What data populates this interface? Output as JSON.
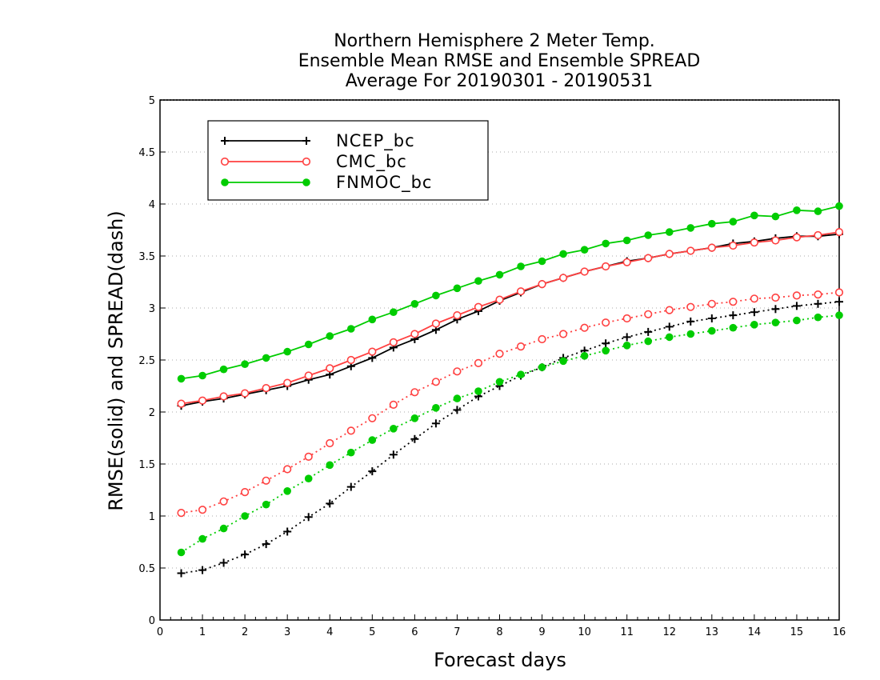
{
  "chart_data": {
    "type": "line",
    "title": [
      "Northern Hemisphere 2 Meter Temp.",
      "Ensemble Mean RMSE and Ensemble SPREAD",
      "Average For 20190301 - 20190531"
    ],
    "xlabel": "Forecast days",
    "ylabel": "RMSE(solid) and SPREAD(dash)",
    "xlim": [
      0,
      16
    ],
    "ylim": [
      0,
      5
    ],
    "xticks": [
      0,
      1,
      2,
      3,
      4,
      5,
      6,
      7,
      8,
      9,
      10,
      11,
      12,
      13,
      14,
      15,
      16
    ],
    "yticks": [
      0,
      0.5,
      1,
      1.5,
      2,
      2.5,
      3,
      3.5,
      4,
      4.5,
      5
    ],
    "ytick_labels": [
      "0",
      "0.5",
      "1",
      "1.5",
      "2",
      "2.5",
      "3",
      "3.5",
      "4",
      "4.5",
      "5"
    ],
    "grid": true,
    "legend_position": "top-left",
    "x": [
      0.5,
      1,
      1.5,
      2,
      2.5,
      3,
      3.5,
      4,
      4.5,
      5,
      5.5,
      6,
      6.5,
      7,
      7.5,
      8,
      8.5,
      9,
      9.5,
      10,
      10.5,
      11,
      11.5,
      12,
      12.5,
      13,
      13.5,
      14,
      14.5,
      15,
      15.5,
      16
    ],
    "series": [
      {
        "name": "NCEP_bc",
        "color": "#000000",
        "marker": "plus",
        "rmse": [
          2.06,
          2.1,
          2.13,
          2.17,
          2.21,
          2.25,
          2.31,
          2.36,
          2.44,
          2.52,
          2.62,
          2.7,
          2.79,
          2.89,
          2.97,
          3.07,
          3.15,
          3.23,
          3.29,
          3.35,
          3.4,
          3.45,
          3.48,
          3.52,
          3.55,
          3.58,
          3.62,
          3.64,
          3.67,
          3.69,
          3.69,
          3.71
        ],
        "spread": [
          0.45,
          0.48,
          0.55,
          0.63,
          0.73,
          0.85,
          0.99,
          1.12,
          1.28,
          1.43,
          1.59,
          1.74,
          1.89,
          2.02,
          2.15,
          2.25,
          2.35,
          2.43,
          2.52,
          2.59,
          2.66,
          2.72,
          2.77,
          2.82,
          2.87,
          2.9,
          2.93,
          2.96,
          2.99,
          3.02,
          3.04,
          3.06
        ]
      },
      {
        "name": "CMC_bc",
        "color": "#ff4040",
        "marker": "open-circle",
        "rmse": [
          2.08,
          2.11,
          2.15,
          2.18,
          2.23,
          2.28,
          2.35,
          2.42,
          2.5,
          2.58,
          2.67,
          2.75,
          2.85,
          2.93,
          3.01,
          3.08,
          3.16,
          3.23,
          3.29,
          3.35,
          3.4,
          3.44,
          3.48,
          3.52,
          3.55,
          3.58,
          3.6,
          3.63,
          3.65,
          3.68,
          3.7,
          3.73
        ],
        "spread": [
          1.03,
          1.06,
          1.14,
          1.23,
          1.34,
          1.45,
          1.57,
          1.7,
          1.82,
          1.94,
          2.07,
          2.19,
          2.29,
          2.39,
          2.47,
          2.56,
          2.63,
          2.7,
          2.75,
          2.81,
          2.86,
          2.9,
          2.94,
          2.98,
          3.01,
          3.04,
          3.06,
          3.09,
          3.1,
          3.12,
          3.13,
          3.15
        ]
      },
      {
        "name": "FNMOC_bc",
        "color": "#00cc00",
        "marker": "filled-circle",
        "rmse": [
          2.32,
          2.35,
          2.41,
          2.46,
          2.52,
          2.58,
          2.65,
          2.73,
          2.8,
          2.89,
          2.96,
          3.04,
          3.12,
          3.19,
          3.26,
          3.32,
          3.4,
          3.45,
          3.52,
          3.56,
          3.62,
          3.65,
          3.7,
          3.73,
          3.77,
          3.81,
          3.83,
          3.89,
          3.88,
          3.94,
          3.93,
          3.98
        ],
        "spread": [
          0.65,
          0.78,
          0.88,
          1.0,
          1.11,
          1.24,
          1.36,
          1.49,
          1.61,
          1.73,
          1.84,
          1.94,
          2.04,
          2.13,
          2.2,
          2.29,
          2.36,
          2.43,
          2.49,
          2.54,
          2.59,
          2.64,
          2.68,
          2.72,
          2.75,
          2.78,
          2.81,
          2.84,
          2.86,
          2.88,
          2.91,
          2.93
        ]
      }
    ]
  }
}
